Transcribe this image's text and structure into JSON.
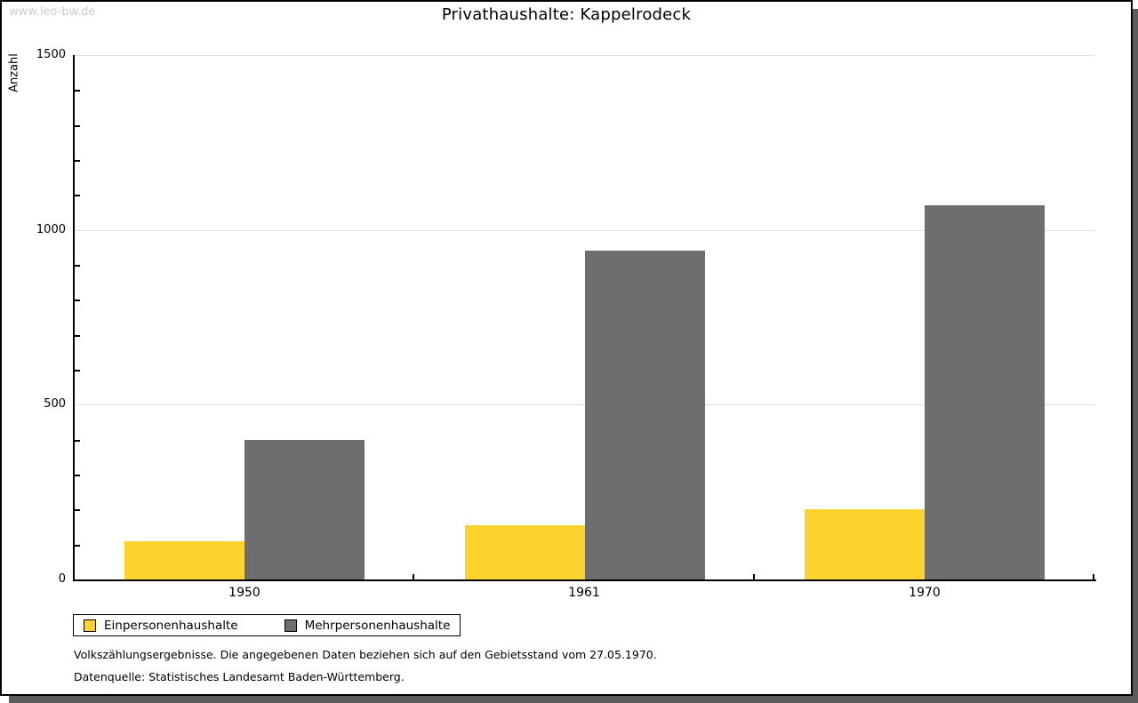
{
  "watermark": "www.leo-bw.de",
  "footnotes": {
    "line1": "Volkszählungsergebnisse. Die angegebenen Daten beziehen sich auf den Gebietsstand vom 27.05.1970.",
    "line2": "Datenquelle: Statistisches Landesamt Baden-Württemberg."
  },
  "chart_data": {
    "type": "bar",
    "title": "Privathaushalte: Kappelrodeck",
    "xlabel": "",
    "ylabel": "Anzahl",
    "categories": [
      "1950",
      "1961",
      "1970"
    ],
    "series": [
      {
        "name": "Einpersonenhaushalte",
        "color": "#FDD42E",
        "values": [
          110,
          155,
          200
        ]
      },
      {
        "name": "Mehrpersonenhaushalte",
        "color": "#6E6E6E",
        "values": [
          400,
          940,
          1070
        ]
      }
    ],
    "ylim": [
      0,
      1500
    ],
    "y_ticks": [
      0,
      500,
      1000,
      1500
    ],
    "y_minor_tick_step": 100,
    "grid": true,
    "legend_position": "bottom-left"
  },
  "colors": {
    "grid": "#DDDDDD",
    "axis": "#000000",
    "page_border": "#000000",
    "page_shadow": "#5C5C5C",
    "watermark": "#CCCCCC"
  }
}
